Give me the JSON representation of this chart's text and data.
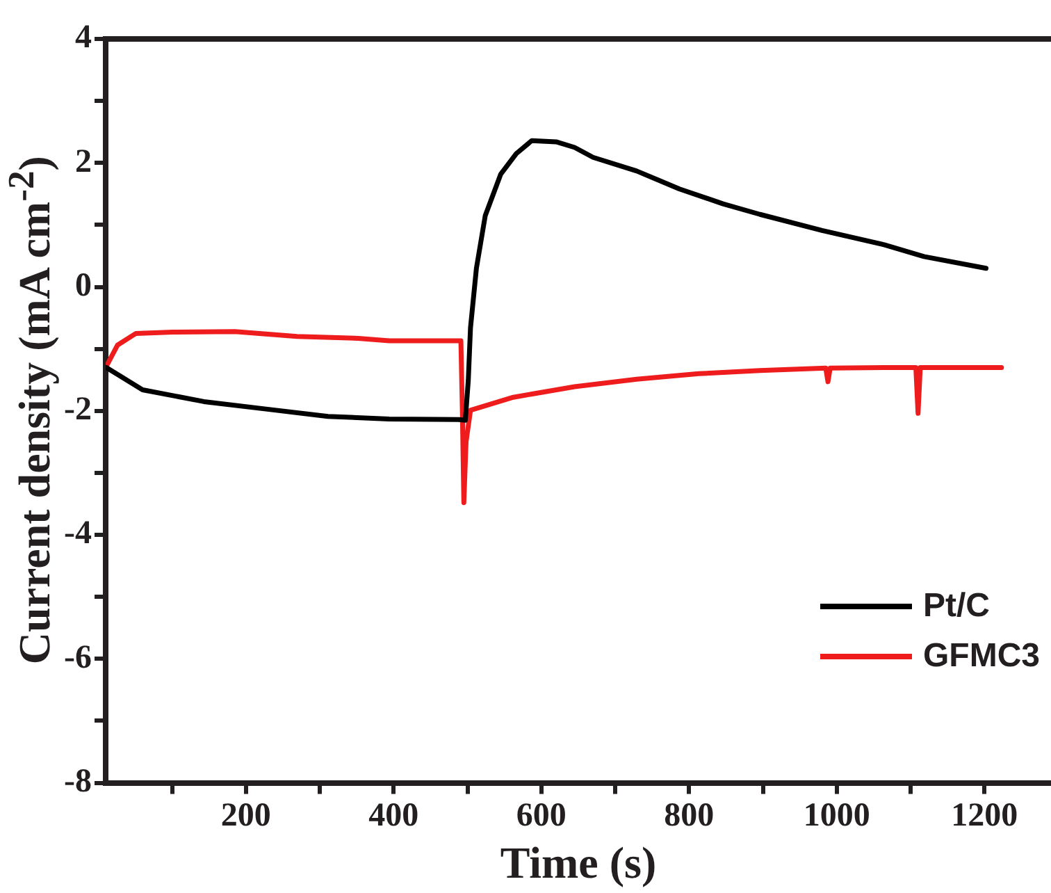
{
  "chart_data": {
    "type": "line",
    "xlabel": "Time (s)",
    "ylabel": "Current density (mA cm$^{-2}$)",
    "xlim": [
      10,
      1290
    ],
    "ylim": [
      -8,
      4
    ],
    "xticks": [
      {
        "value": 100,
        "label": null
      },
      200,
      {
        "value": 300,
        "label": null
      },
      400,
      {
        "value": 500,
        "label": null
      },
      600,
      {
        "value": 700,
        "label": null
      },
      800,
      {
        "value": 900,
        "label": null
      },
      1000,
      {
        "value": 1100,
        "label": null
      },
      1200
    ],
    "yticks": [
      -8,
      {
        "value": -7,
        "label": null
      },
      -6,
      {
        "value": -5,
        "label": null
      },
      -4,
      {
        "value": -3,
        "label": null
      },
      -2,
      {
        "value": -1,
        "label": null
      },
      0,
      {
        "value": 1,
        "label": null
      },
      2,
      {
        "value": 3,
        "label": null
      },
      4
    ],
    "grid": false,
    "legend": "bottom right",
    "marker": "none",
    "line_style": "solid",
    "series": [
      {
        "name": "Pt/C",
        "color": "#000000",
        "x": [
          11,
          60,
          143,
          227,
          311,
          394,
          488,
          497,
          501,
          504,
          512,
          524,
          545,
          566,
          587,
          620,
          645,
          670,
          729,
          787,
          846,
          896,
          980,
          1064,
          1118,
          1202
        ],
        "values": [
          -1.3,
          -1.66,
          -1.85,
          -1.97,
          -2.09,
          -2.13,
          -2.14,
          -2.15,
          -1.51,
          -0.66,
          0.3,
          1.15,
          1.82,
          2.15,
          2.36,
          2.34,
          2.25,
          2.09,
          1.87,
          1.58,
          1.34,
          1.17,
          0.91,
          0.68,
          0.49,
          0.3
        ]
      },
      {
        "name": "GFMC3",
        "color": "#ee1c1c",
        "x": [
          11,
          26,
          51,
          101,
          185,
          269,
          352,
          394,
          491,
          493,
          495,
          498,
          504,
          562,
          645,
          729,
          813,
          896,
          985,
          988,
          991,
          1064,
          1107,
          1110,
          1113,
          1223
        ],
        "values": [
          -1.28,
          -0.94,
          -0.75,
          -0.73,
          -0.72,
          -0.8,
          -0.83,
          -0.87,
          -0.87,
          -2.0,
          -3.48,
          -2.5,
          -1.99,
          -1.78,
          -1.61,
          -1.49,
          -1.4,
          -1.35,
          -1.31,
          -1.53,
          -1.31,
          -1.3,
          -1.3,
          -2.04,
          -1.3,
          -1.3
        ]
      }
    ]
  }
}
